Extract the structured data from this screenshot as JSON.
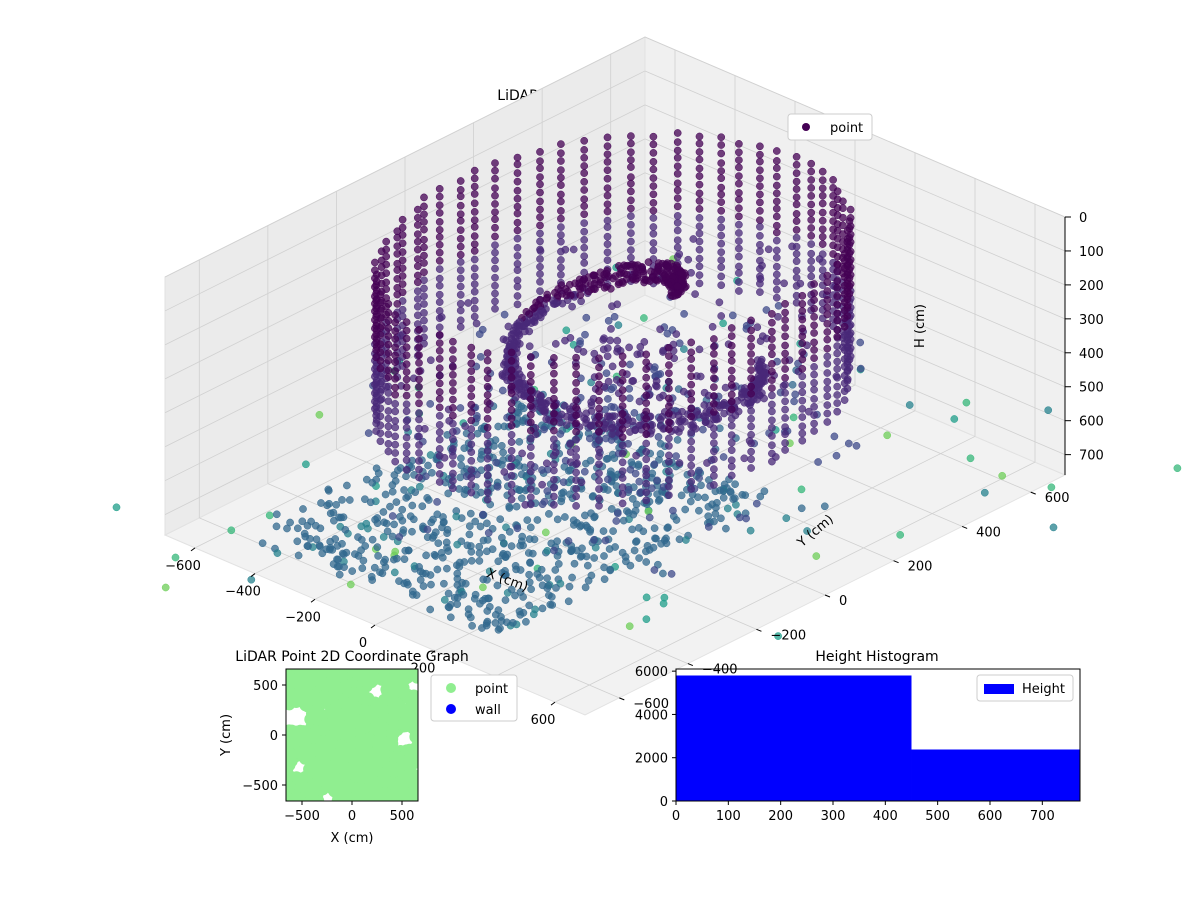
{
  "chart_data": [
    {
      "type": "scatter",
      "projection": "3d",
      "title": "LiDAR Point 3D Coordinate Graph",
      "xlabel": "X (cm)",
      "ylabel": "Y (cm)",
      "zlabel": "H (cm)",
      "x_ticks": [
        -600,
        -400,
        -200,
        0,
        200,
        400,
        600
      ],
      "y_ticks": [
        -600,
        -400,
        -200,
        0,
        200,
        400,
        600
      ],
      "z_ticks": [
        0,
        100,
        200,
        300,
        400,
        500,
        600,
        700
      ],
      "x_tick_labels": [
        "−600",
        "−400",
        "−200",
        "0",
        "200",
        "400",
        "600"
      ],
      "y_tick_labels": [
        "−600",
        "−400",
        "−200",
        "0",
        "200",
        "400",
        "600"
      ],
      "z_tick_labels": [
        "0",
        "100",
        "200",
        "300",
        "400",
        "500",
        "600",
        "700"
      ],
      "xlim": [
        -700,
        700
      ],
      "ylim": [
        -700,
        700
      ],
      "zlim": [
        0,
        760
      ],
      "z_inverted": true,
      "grid": true,
      "legend": {
        "entries": [
          "point"
        ],
        "placement": "upper-right"
      },
      "colormap": "viridis",
      "point_color": "#440154",
      "structure": {
        "outer_ring_radius": 520,
        "outer_ring_height": [
          0,
          450
        ],
        "inner_spiral_radius": [
          120,
          330
        ],
        "inner_spiral_height": [
          90,
          420
        ],
        "floor_height": [
          700,
          760
        ]
      }
    },
    {
      "type": "scatter",
      "title": "LiDAR Point 2D Coordinate Graph",
      "xlabel": "X (cm)",
      "ylabel": "Y (cm)",
      "x_ticks": [
        -500,
        0,
        500
      ],
      "y_ticks": [
        -500,
        0,
        500
      ],
      "x_tick_labels": [
        "−500",
        "0",
        "500"
      ],
      "y_tick_labels": [
        "−500",
        "0",
        "500"
      ],
      "xlim": [
        -660,
        660
      ],
      "ylim": [
        -660,
        660
      ],
      "legend": {
        "entries": [
          "point",
          "wall"
        ],
        "placement": "outside-right"
      },
      "series": [
        {
          "name": "point",
          "color": "#90ee90"
        },
        {
          "name": "wall",
          "color": "#0000ff"
        }
      ]
    },
    {
      "type": "bar",
      "subtype": "histogram",
      "title": "Height Histogram",
      "x_ticks": [
        0,
        100,
        200,
        300,
        400,
        500,
        600,
        700
      ],
      "y_ticks": [
        0,
        2000,
        4000,
        6000
      ],
      "x_tick_labels": [
        "0",
        "100",
        "200",
        "300",
        "400",
        "500",
        "600",
        "700"
      ],
      "y_tick_labels": [
        "0",
        "2000",
        "4000",
        "6000"
      ],
      "xlim": [
        0,
        772
      ],
      "ylim": [
        0,
        6100
      ],
      "bins": [
        {
          "start": 0,
          "end": 450,
          "count": 5800
        },
        {
          "start": 450,
          "end": 772,
          "count": 2380
        }
      ],
      "color": "#0000ff",
      "legend": {
        "entries": [
          "Height"
        ],
        "placement": "upper-right"
      }
    }
  ]
}
